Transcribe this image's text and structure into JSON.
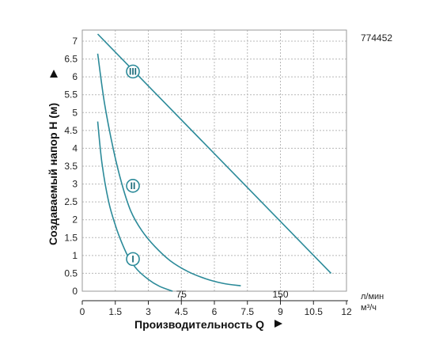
{
  "chart_data": {
    "type": "line",
    "code": "774452",
    "xlabel": "Производительность Q",
    "ylabel": "Создаваемый напор H (м)",
    "x_unit_top": "л/мин",
    "x_unit_bottom": "м³/ч",
    "xlim": [
      0,
      12
    ],
    "ylim": [
      0,
      7.3
    ],
    "x_ticks": [
      "0",
      "1.5",
      "3",
      "4.5",
      "6",
      "7.5",
      "9",
      "10.5",
      "12"
    ],
    "x_tick_values": [
      0,
      1.5,
      3,
      4.5,
      6,
      7.5,
      9,
      10.5,
      12
    ],
    "y_ticks": [
      "0",
      "0.5",
      "1",
      "1.5",
      "2",
      "2.5",
      "3",
      "3.5",
      "4",
      "4.5",
      "5",
      "5.5",
      "6",
      "6.5",
      "7"
    ],
    "y_tick_values": [
      0,
      0.5,
      1,
      1.5,
      2,
      2.5,
      3,
      3.5,
      4,
      4.5,
      5,
      5.5,
      6,
      6.5,
      7
    ],
    "secondary_x_ticks": [
      "75",
      "150"
    ],
    "secondary_x_tick_values": [
      4.5,
      9
    ],
    "grid": true,
    "curve_color": "#2b8a99",
    "series": [
      {
        "name": "I",
        "x": [
          0.7,
          0.9,
          1.2,
          1.5,
          1.8,
          2.1,
          2.5,
          3.0,
          3.5,
          4.1
        ],
        "y": [
          4.75,
          3.55,
          2.5,
          1.85,
          1.35,
          0.95,
          0.6,
          0.33,
          0.14,
          0.0
        ]
      },
      {
        "name": "II",
        "x": [
          0.7,
          1.0,
          1.4,
          1.8,
          2.2,
          2.7,
          3.3,
          4.0,
          4.8,
          5.6,
          6.4,
          7.2
        ],
        "y": [
          6.65,
          5.3,
          4.0,
          3.0,
          2.25,
          1.7,
          1.25,
          0.85,
          0.55,
          0.35,
          0.22,
          0.15
        ]
      },
      {
        "name": "III",
        "x": [
          0.7,
          11.3
        ],
        "y": [
          7.2,
          0.5
        ]
      }
    ],
    "curve_labels": [
      {
        "text": "I",
        "x": 2.3,
        "y": 0.9
      },
      {
        "text": "II",
        "x": 2.3,
        "y": 2.95
      },
      {
        "text": "III",
        "x": 2.3,
        "y": 6.15
      }
    ]
  }
}
